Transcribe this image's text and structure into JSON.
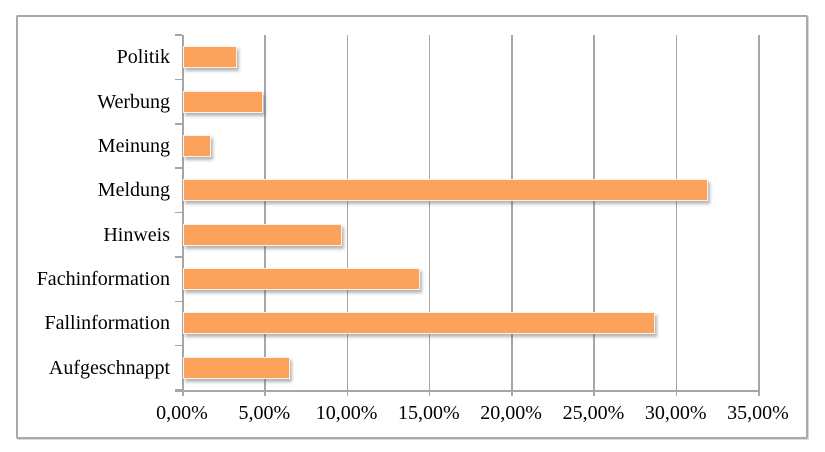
{
  "chart_data": {
    "type": "bar",
    "orientation": "horizontal",
    "title": "",
    "categories": [
      "Politik",
      "Werbung",
      "Meinung",
      "Meldung",
      "Hinweis",
      "Fachinformation",
      "Fallinformation",
      "Aufgeschnappt"
    ],
    "values": [
      3.17,
      4.76,
      1.59,
      31.75,
      9.52,
      14.29,
      28.57,
      6.35
    ],
    "x_axis": {
      "min": 0,
      "max": 35,
      "step": 5,
      "tick_labels": [
        "0,00%",
        "5,00%",
        "10,00%",
        "15,00%",
        "20,00%",
        "25,00%",
        "30,00%",
        "35,00%"
      ]
    },
    "grid": true,
    "legend": false,
    "colors": {
      "bar": "#fba35d",
      "gridline": "#a6a6a6",
      "axis": "#a6a6a6",
      "text": "#000000",
      "frame_border": "#a9a9a9",
      "background": "#ffffff"
    }
  }
}
